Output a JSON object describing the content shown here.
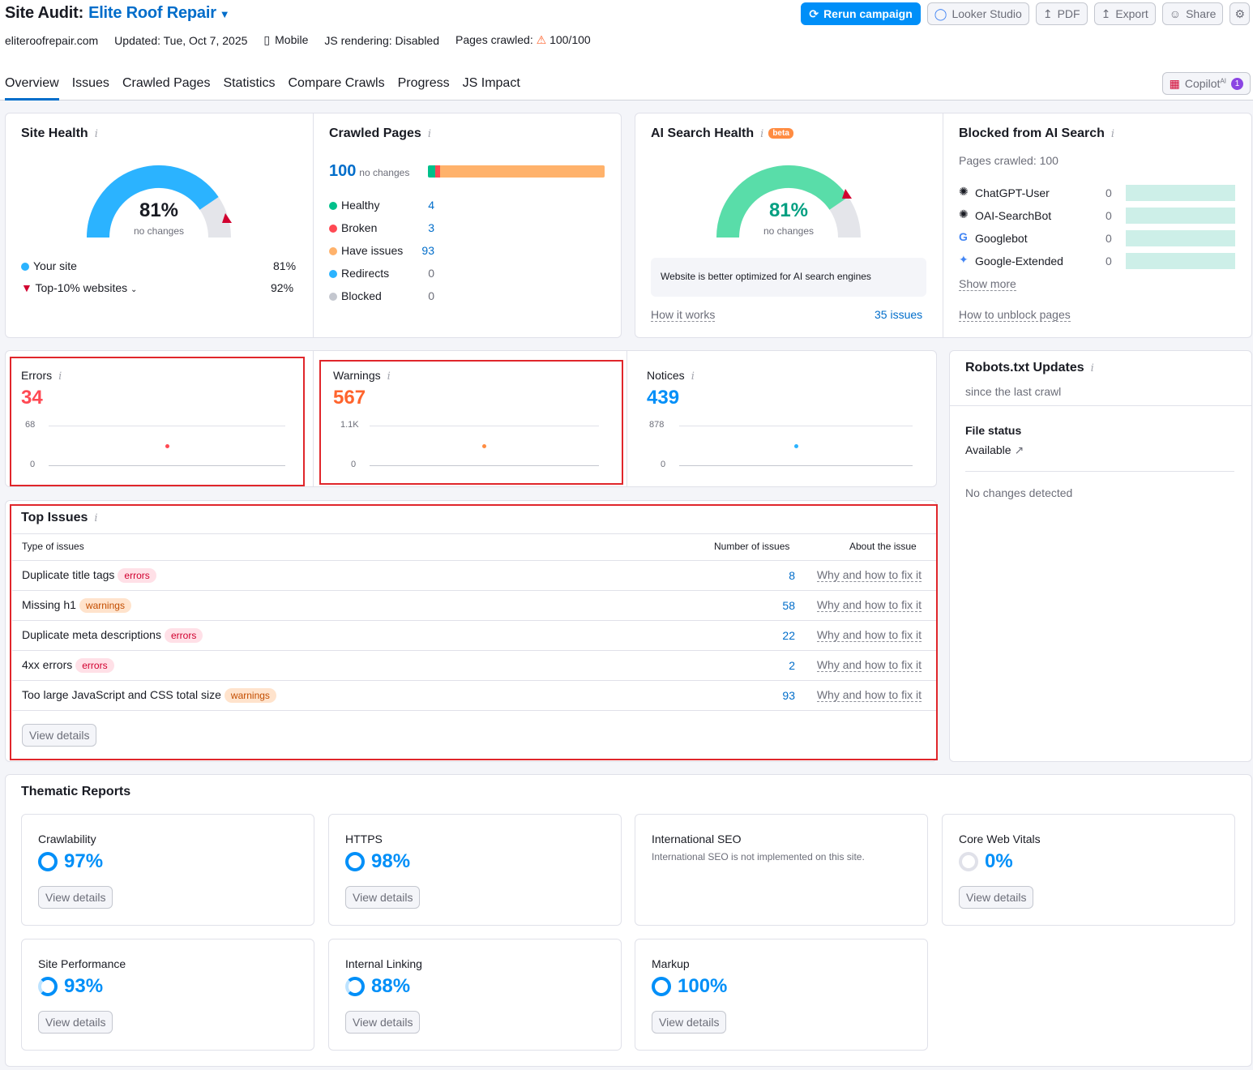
{
  "header": {
    "title": "Site Audit:",
    "project": "Elite Roof Repair",
    "domain": "eliteroofrepair.com",
    "updated": "Updated: Tue, Oct 7, 2025",
    "device": "Mobile",
    "js": "JS rendering: Disabled",
    "pages_label": "Pages crawled:",
    "pages_value": "100/100"
  },
  "buttons": {
    "rerun": "Rerun campaign",
    "looker": "Looker Studio",
    "pdf": "PDF",
    "export": "Export",
    "share": "Share"
  },
  "tabs": [
    "Overview",
    "Issues",
    "Crawled Pages",
    "Statistics",
    "Compare Crawls",
    "Progress",
    "JS Impact"
  ],
  "copilot": {
    "label": "Copilot",
    "sup": "AI",
    "count": "1"
  },
  "site_health": {
    "title": "Site Health",
    "value": "81%",
    "sub": "no changes",
    "your_site": "Your site",
    "your_val": "81%",
    "top": "Top-10% websites",
    "top_val": "92%",
    "gauge_fraction": 0.81
  },
  "crawled": {
    "title": "Crawled Pages",
    "total": "100",
    "sub": "no changes",
    "items": [
      {
        "label": "Healthy",
        "value": "4",
        "color": "#00c08b"
      },
      {
        "label": "Broken",
        "value": "3",
        "color": "#ff4953"
      },
      {
        "label": "Have issues",
        "value": "93",
        "color": "#ffb26b"
      },
      {
        "label": "Redirects",
        "value": "0",
        "color": "#2bb3ff"
      },
      {
        "label": "Blocked",
        "value": "0",
        "color": "#c4c7cf"
      }
    ]
  },
  "ai_health": {
    "title": "AI Search Health",
    "beta": "beta",
    "value": "81%",
    "sub": "no changes",
    "note": "Website is better optimized for AI search engines",
    "how": "How it works",
    "issues": "35 issues"
  },
  "blocked": {
    "title": "Blocked from AI Search",
    "pages": "Pages crawled: 100",
    "bots": [
      {
        "name": "ChatGPT-User",
        "value": "0"
      },
      {
        "name": "OAI-SearchBot",
        "value": "0"
      },
      {
        "name": "Googlebot",
        "value": "0"
      },
      {
        "name": "Google-Extended",
        "value": "0"
      }
    ],
    "more": "Show more",
    "unblock": "How to unblock pages"
  },
  "errors": {
    "label": "Errors",
    "value": "34",
    "max": "68",
    "min": "0"
  },
  "warnings": {
    "label": "Warnings",
    "value": "567",
    "max": "1.1K",
    "min": "0"
  },
  "notices": {
    "label": "Notices",
    "value": "439",
    "max": "878",
    "min": "0"
  },
  "robots": {
    "title": "Robots.txt Updates",
    "sub": "since the last crawl",
    "file_status": "File status",
    "available": "Available",
    "nochange": "No changes detected"
  },
  "top_issues": {
    "title": "Top Issues",
    "col1": "Type of issues",
    "col2": "Number of issues",
    "col3": "About the issue",
    "fix": "Why and how to fix it",
    "rows": [
      {
        "name": "Duplicate title tags",
        "tag": "errors",
        "count": "8"
      },
      {
        "name": "Missing h1",
        "tag": "warnings",
        "count": "58"
      },
      {
        "name": "Duplicate meta descriptions",
        "tag": "errors",
        "count": "22"
      },
      {
        "name": "4xx errors",
        "tag": "errors",
        "count": "2"
      },
      {
        "name": "Too large JavaScript and CSS total size",
        "tag": "warnings",
        "count": "93"
      }
    ],
    "view": "View details"
  },
  "thematic": {
    "title": "Thematic Reports",
    "view": "View details",
    "reports": [
      {
        "label": "Crawlability",
        "value": "97%"
      },
      {
        "label": "HTTPS",
        "value": "98%"
      },
      {
        "label": "International SEO",
        "note": "International SEO is not implemented on this site."
      },
      {
        "label": "Core Web Vitals",
        "value": "0%"
      },
      {
        "label": "Site Performance",
        "value": "93%"
      },
      {
        "label": "Internal Linking",
        "value": "88%"
      },
      {
        "label": "Markup",
        "value": "100%"
      }
    ]
  }
}
